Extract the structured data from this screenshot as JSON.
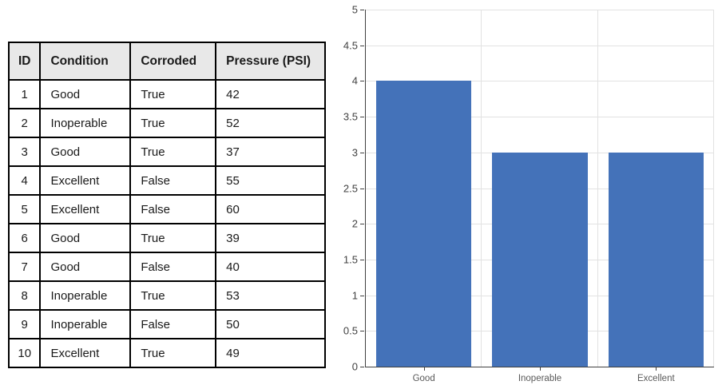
{
  "table": {
    "headers": [
      "ID",
      "Condition",
      "Corroded",
      "Pressure (PSI)"
    ],
    "rows": [
      [
        "1",
        "Good",
        "True",
        "42"
      ],
      [
        "2",
        "Inoperable",
        "True",
        "52"
      ],
      [
        "3",
        "Good",
        "True",
        "37"
      ],
      [
        "4",
        "Excellent",
        "False",
        "55"
      ],
      [
        "5",
        "Excellent",
        "False",
        "60"
      ],
      [
        "6",
        "Good",
        "True",
        "39"
      ],
      [
        "7",
        "Good",
        "False",
        "40"
      ],
      [
        "8",
        "Inoperable",
        "True",
        "53"
      ],
      [
        "9",
        "Inoperable",
        "False",
        "50"
      ],
      [
        "10",
        "Excellent",
        "True",
        "49"
      ]
    ]
  },
  "chart_data": {
    "type": "bar",
    "categories": [
      "Good",
      "Inoperable",
      "Excellent"
    ],
    "values": [
      4,
      3,
      3
    ],
    "title": "",
    "xlabel": "",
    "ylabel": "",
    "ylim": [
      0,
      5
    ],
    "ytick_step": 0.5,
    "ytick_labels": [
      "0",
      "0.5",
      "1",
      "1.5",
      "2",
      "2.5",
      "3",
      "3.5",
      "4",
      "4.5",
      "5"
    ],
    "grid": true,
    "legend": false,
    "bar_color": "#4472B9",
    "gridline_color": "#E2E2E2",
    "axis_color": "#404040",
    "tick_label_color": "#404040",
    "category_label_color": "#595959"
  }
}
